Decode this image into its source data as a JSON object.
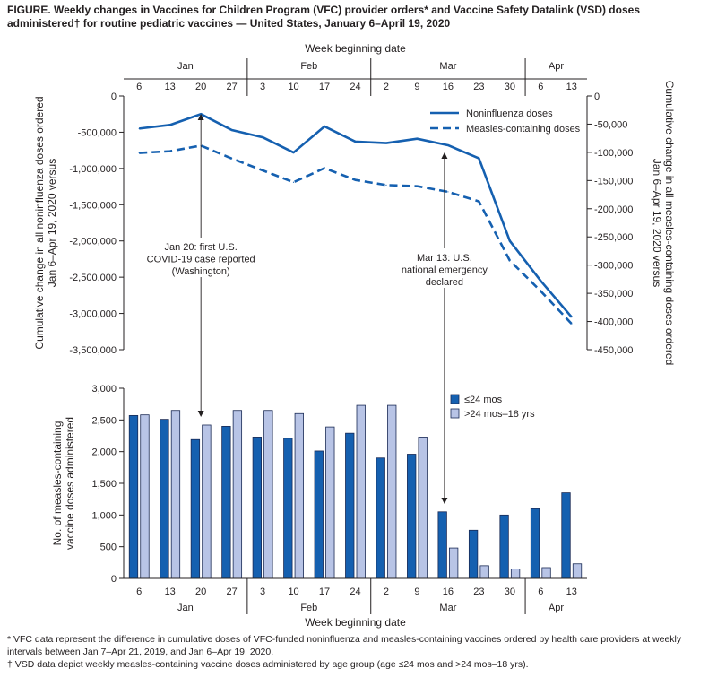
{
  "figure_title": "FIGURE. Weekly changes in Vaccines for Children Program (VFC) provider orders* and Vaccine Safety Datalink (VSD) doses administered† for routine pediatric vaccines — United States, January 6–April 19, 2020",
  "footnotes": [
    "* VFC data represent the difference in cumulative doses of VFC-funded noninfluenza and measles-containing vaccines ordered by health care providers at weekly intervals between  Jan 7–Apr 21, 2019, and Jan 6–Apr 19, 2020.",
    "† VSD data depict weekly measles-containing vaccine doses administered by age group (age ≤24 mos and >24 mos–18 yrs)."
  ],
  "colors": {
    "dark_blue": "#1560b0",
    "light_blue": "#b8c4e6",
    "axis": "#231f20"
  },
  "shared_axis": {
    "weeks": [
      "6",
      "13",
      "20",
      "27",
      "3",
      "10",
      "17",
      "24",
      "2",
      "9",
      "16",
      "23",
      "30",
      "6",
      "13"
    ],
    "months": [
      {
        "label": "Jan",
        "start": 0,
        "end": 4
      },
      {
        "label": "Feb",
        "start": 4,
        "end": 8
      },
      {
        "label": "Mar",
        "start": 8,
        "end": 13
      },
      {
        "label": "Apr",
        "start": 13,
        "end": 15
      }
    ],
    "xlabel": "Week beginning date"
  },
  "chart_data": [
    {
      "type": "line",
      "categories": [
        "6",
        "13",
        "20",
        "27",
        "3",
        "10",
        "17",
        "24",
        "2",
        "9",
        "16",
        "23",
        "30",
        "6",
        "13"
      ],
      "series": [
        {
          "name": "Noninfluenza doses",
          "axis": "left",
          "style": "solid",
          "values": [
            -450000,
            -400000,
            -250000,
            -470000,
            -570000,
            -780000,
            -420000,
            -630000,
            -650000,
            -590000,
            -680000,
            -860000,
            -2000000,
            -2550000,
            -3050000
          ]
        },
        {
          "name": "Measles-containing doses",
          "axis": "right",
          "style": "dashed",
          "values": [
            -101000,
            -98000,
            -88000,
            -111000,
            -132000,
            -153000,
            -128000,
            -149000,
            -158000,
            -160000,
            -170000,
            -187000,
            -292000,
            -346000,
            -404000
          ]
        }
      ],
      "ylabel_left": "Cumulative change in all noninfluenza doses ordered Jan 6–Apr 19, 2020 versus Jan 7–Apr 21, 2019",
      "ylabel_right": "Cumulative change in all measles-containing doses ordered Jan 6–Apr 19, 2020 versus Jan 7–Apr 21, 2019",
      "ylim_left": [
        -3500000,
        0
      ],
      "ylim_right": [
        -450000,
        0
      ],
      "yticks_left": [
        "0",
        "-500,000",
        "-1,000,000",
        "-1,500,000",
        "-2,000,000",
        "-2,500,000",
        "-3,000,000",
        "-3,500,000"
      ],
      "yticks_right": [
        "0",
        "-50,000",
        "-100,000",
        "-150,000",
        "-200,000",
        "-250,000",
        "-300,000",
        "-350,000",
        "-400,000",
        "-450,000"
      ],
      "xlabel": "Week beginning date",
      "legend_position": "top-right",
      "annotations": [
        {
          "lines": [
            "Jan 20: first U.S.",
            "COVID-19 case reported",
            "(Washington)"
          ]
        },
        {
          "lines": [
            "Mar 13: U.S.",
            "national emergency",
            "declared"
          ]
        }
      ]
    },
    {
      "type": "bar",
      "categories": [
        "6",
        "13",
        "20",
        "27",
        "3",
        "10",
        "17",
        "24",
        "2",
        "9",
        "16",
        "23",
        "30",
        "6",
        "13"
      ],
      "series": [
        {
          "name": "≤24 mos",
          "values": [
            2570,
            2510,
            2190,
            2400,
            2230,
            2210,
            2010,
            2290,
            1900,
            1960,
            1050,
            760,
            1000,
            1100,
            1350
          ]
        },
        {
          "name": ">24 mos–18 yrs",
          "values": [
            2580,
            2650,
            2420,
            2650,
            2650,
            2600,
            2390,
            2730,
            2730,
            2230,
            480,
            200,
            150,
            170,
            230
          ]
        }
      ],
      "ylabel": "No. of measles-containing vaccine doses administered",
      "ylim": [
        0,
        3000
      ],
      "yticks": [
        "0",
        "500",
        "1,000",
        "1,500",
        "2,000",
        "2,500",
        "3,000"
      ],
      "xlabel": "Week beginning date",
      "legend_position": "top-right"
    }
  ]
}
